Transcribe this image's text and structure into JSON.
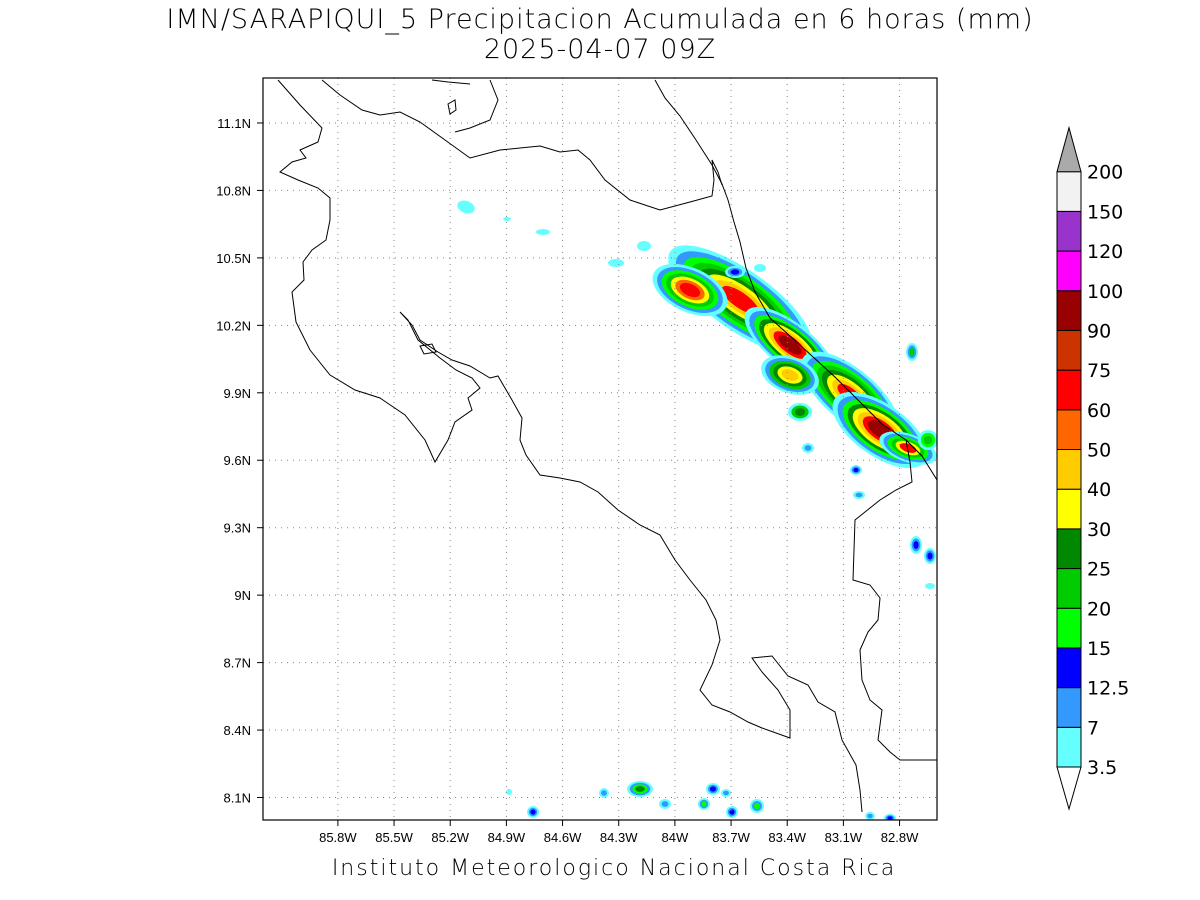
{
  "header": {
    "title": "IMN/SARAPIQUI_5 Precipitacion Acumulada en 6 horas (mm)",
    "datetime": "2025-04-07 09Z"
  },
  "footer": {
    "credit": "Instituto Meteorologico Nacional Costa Rica"
  },
  "map": {
    "lon_range": [
      -86.2,
      -82.6
    ],
    "lat_range": [
      8.0,
      11.3
    ],
    "x_ticks": [
      {
        "lon": -85.8,
        "label": "85.8W"
      },
      {
        "lon": -85.5,
        "label": "85.5W"
      },
      {
        "lon": -85.2,
        "label": "85.2W"
      },
      {
        "lon": -84.9,
        "label": "84.9W"
      },
      {
        "lon": -84.6,
        "label": "84.6W"
      },
      {
        "lon": -84.3,
        "label": "84.3W"
      },
      {
        "lon": -84.0,
        "label": "84W"
      },
      {
        "lon": -83.7,
        "label": "83.7W"
      },
      {
        "lon": -83.4,
        "label": "83.4W"
      },
      {
        "lon": -83.1,
        "label": "83.1W"
      },
      {
        "lon": -82.8,
        "label": "82.8W"
      }
    ],
    "y_ticks": [
      {
        "lat": 8.1,
        "label": "8.1N"
      },
      {
        "lat": 8.4,
        "label": "8.4N"
      },
      {
        "lat": 8.7,
        "label": "8.7N"
      },
      {
        "lat": 9.0,
        "label": "9N"
      },
      {
        "lat": 9.3,
        "label": "9.3N"
      },
      {
        "lat": 9.6,
        "label": "9.6N"
      },
      {
        "lat": 9.9,
        "label": "9.9N"
      },
      {
        "lat": 10.2,
        "label": "10.2N"
      },
      {
        "lat": 10.5,
        "label": "10.5N"
      },
      {
        "lat": 10.8,
        "label": "10.8N"
      },
      {
        "lat": 11.1,
        "label": "11.1N"
      }
    ],
    "grid": true,
    "colorbar": {
      "levels": [
        {
          "label": "3.5",
          "color": "#66ffff"
        },
        {
          "label": "7",
          "color": "#3399ff"
        },
        {
          "label": "12.5",
          "color": "#0000ff"
        },
        {
          "label": "15",
          "color": "#00ff00"
        },
        {
          "label": "20",
          "color": "#00cc00"
        },
        {
          "label": "25",
          "color": "#008800"
        },
        {
          "label": "30",
          "color": "#ffff00"
        },
        {
          "label": "40",
          "color": "#ffcc00"
        },
        {
          "label": "50",
          "color": "#ff6600"
        },
        {
          "label": "60",
          "color": "#ff0000"
        },
        {
          "label": "75",
          "color": "#cc3300"
        },
        {
          "label": "90",
          "color": "#990000"
        },
        {
          "label": "100",
          "color": "#ff00ff"
        },
        {
          "label": "120",
          "color": "#9933cc"
        },
        {
          "label": "150",
          "color": "#f2f2f2"
        },
        {
          "label": "200",
          "color": "#aaaaaa"
        }
      ],
      "low_end_color": "#ffffff",
      "high_end_color": "#aaaaaa"
    }
  }
}
